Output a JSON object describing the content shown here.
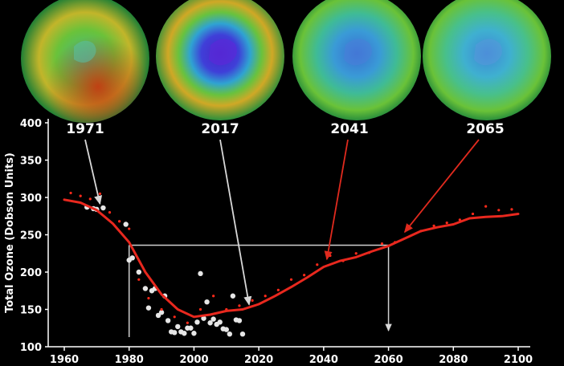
{
  "chart_data": {
    "type": "scatter",
    "title": "",
    "xlabel": "",
    "ylabel": "Total Ozone (Dobson Units)",
    "xlim": [
      1955,
      2100
    ],
    "ylim": [
      100,
      400
    ],
    "x_ticks": [
      "1960",
      "1980",
      "2000",
      "2020",
      "2040",
      "2060",
      "2080",
      "2100"
    ],
    "y_ticks": [
      "100",
      "150",
      "200",
      "250",
      "300",
      "350",
      "400"
    ],
    "globes": [
      {
        "year": "1971",
        "hole": "none",
        "label_year": 1971
      },
      {
        "year": "2017",
        "hole": "deep",
        "label_year": 2017
      },
      {
        "year": "2041",
        "hole": "moderate",
        "label_year": 2041
      },
      {
        "year": "2065",
        "hole": "light",
        "label_year": 2065
      }
    ],
    "series": [
      {
        "style": "white-dots",
        "x": [
          1967,
          1969,
          1970,
          1972,
          1979,
          1980,
          1981,
          1983,
          1985,
          1986,
          1987,
          1988,
          1989,
          1990,
          1991,
          1992,
          1993,
          1994,
          1995,
          1996,
          1997,
          1998,
          1999,
          2000,
          2001,
          2002,
          2003,
          2004,
          2005,
          2006,
          2007,
          2008,
          2009,
          2010,
          2011,
          2012,
          2013,
          2014,
          2015
        ],
        "y": [
          287,
          285,
          284,
          286,
          264,
          216,
          219,
          200,
          178,
          152,
          175,
          178,
          142,
          146,
          168,
          135,
          120,
          119,
          127,
          120,
          118,
          125,
          125,
          118,
          133,
          198,
          138,
          160,
          132,
          137,
          130,
          133,
          124,
          123,
          117,
          168,
          136,
          135,
          117
        ]
      },
      {
        "style": "red-dots",
        "x": [
          1962,
          1965,
          1968,
          1971,
          1974,
          1977,
          1980,
          1983,
          1986,
          1990,
          1994,
          1998,
          2002,
          2006,
          2010,
          2014,
          2018,
          2022,
          2026,
          2030,
          2034,
          2038,
          2042,
          2046,
          2050,
          2054,
          2058,
          2062,
          2066,
          2070,
          2074,
          2078,
          2082,
          2086,
          2090,
          2094,
          2098
        ],
        "y": [
          306,
          302,
          298,
          305,
          280,
          268,
          258,
          190,
          165,
          150,
          140,
          132,
          150,
          168,
          150,
          155,
          162,
          168,
          176,
          190,
          196,
          210,
          222,
          215,
          225,
          226,
          238,
          240,
          262,
          255,
          262,
          266,
          270,
          278,
          288,
          283,
          284
        ]
      }
    ],
    "trend": {
      "style": "red-line",
      "x": [
        1960,
        1965,
        1970,
        1975,
        1980,
        1985,
        1990,
        1995,
        2000,
        2005,
        2010,
        2015,
        2020,
        2025,
        2030,
        2035,
        2040,
        2045,
        2050,
        2055,
        2060,
        2065,
        2070,
        2075,
        2080,
        2085,
        2090,
        2095,
        2100
      ],
      "y": [
        297,
        293,
        283,
        265,
        240,
        200,
        170,
        150,
        140,
        143,
        148,
        150,
        157,
        168,
        180,
        193,
        207,
        215,
        220,
        228,
        235,
        245,
        255,
        260,
        264,
        272,
        274,
        275,
        278
      ]
    },
    "reference": {
      "from_year": 1980,
      "level": 236,
      "to_year": 2060
    },
    "colors": {
      "trend": "#e8281e",
      "red_dots": "#ff2a1a",
      "white_dots": "#e6e6e6",
      "arrow_red": "#e02a1e",
      "arrow_white": "#d8d8d8",
      "guide": "#cfcfcf"
    }
  }
}
